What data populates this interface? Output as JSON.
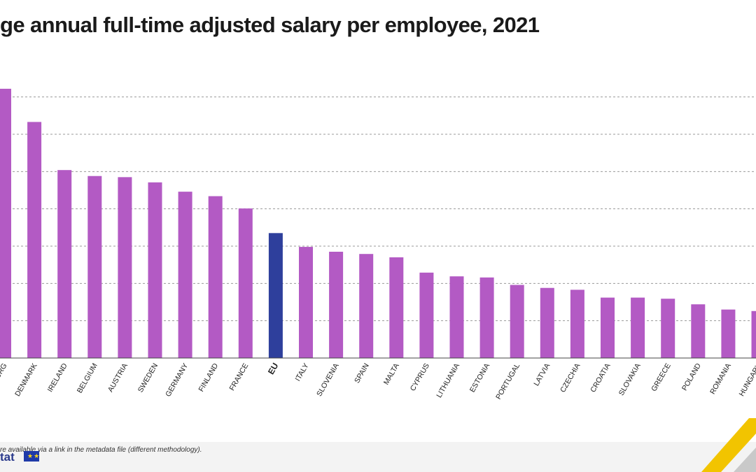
{
  "chart_data": {
    "type": "bar",
    "title": "ge annual full-time adjusted salary per employee, 2021",
    "xlabel": "",
    "ylabel": "",
    "ylim": [
      0,
      75000
    ],
    "grid": true,
    "highlight_category": "EU",
    "colors": {
      "bar": "#b35ac4",
      "highlight": "#2e3f9c",
      "grid": "#9a9a9a",
      "axis": "#444444"
    },
    "categories": [
      "LUXEMBOURG",
      "DENMARK",
      "IRELAND",
      "BELGIUM",
      "AUSTRIA",
      "SWEDEN",
      "GERMANY",
      "FINLAND",
      "FRANCE",
      "EU",
      "ITALY",
      "SLOVENIA",
      "SPAIN",
      "MALTA",
      "CYPRUS",
      "LITHUANIA",
      "ESTONIA",
      "PORTUGAL",
      "LATVIA",
      "CZECHIA",
      "CROATIA",
      "SLOVAKIA",
      "GREECE",
      "POLAND",
      "ROMANIA",
      "HUNGARY"
    ],
    "category_labels": [
      "URG",
      "DENMARK",
      "IRELAND",
      "BELGIUM",
      "AUSTRIA",
      "SWEDEN",
      "GERMANY",
      "FINLAND",
      "FRANCE",
      "EU",
      "ITALY",
      "SLOVENIA",
      "SPAIN",
      "MALTA",
      "CYPRUS",
      "LITHUANIA",
      "ESTONIA",
      "PORTUGAL",
      "LATVIA",
      "CZECHIA",
      "CROATIA",
      "SLOVAKIA",
      "GREECE",
      "POLAND",
      "ROMANIA",
      "HUNGARY"
    ],
    "values": [
      72200,
      63300,
      50400,
      48800,
      48500,
      47100,
      44600,
      43400,
      40100,
      33500,
      29800,
      28500,
      27900,
      27000,
      22900,
      21900,
      21600,
      19600,
      18800,
      18300,
      16200,
      16200,
      15900,
      14400,
      13000,
      12600
    ]
  },
  "footnote": "re available via a link in the metadata file (different methodology).",
  "brand": {
    "name": "tat",
    "flag_stars": "★★"
  }
}
